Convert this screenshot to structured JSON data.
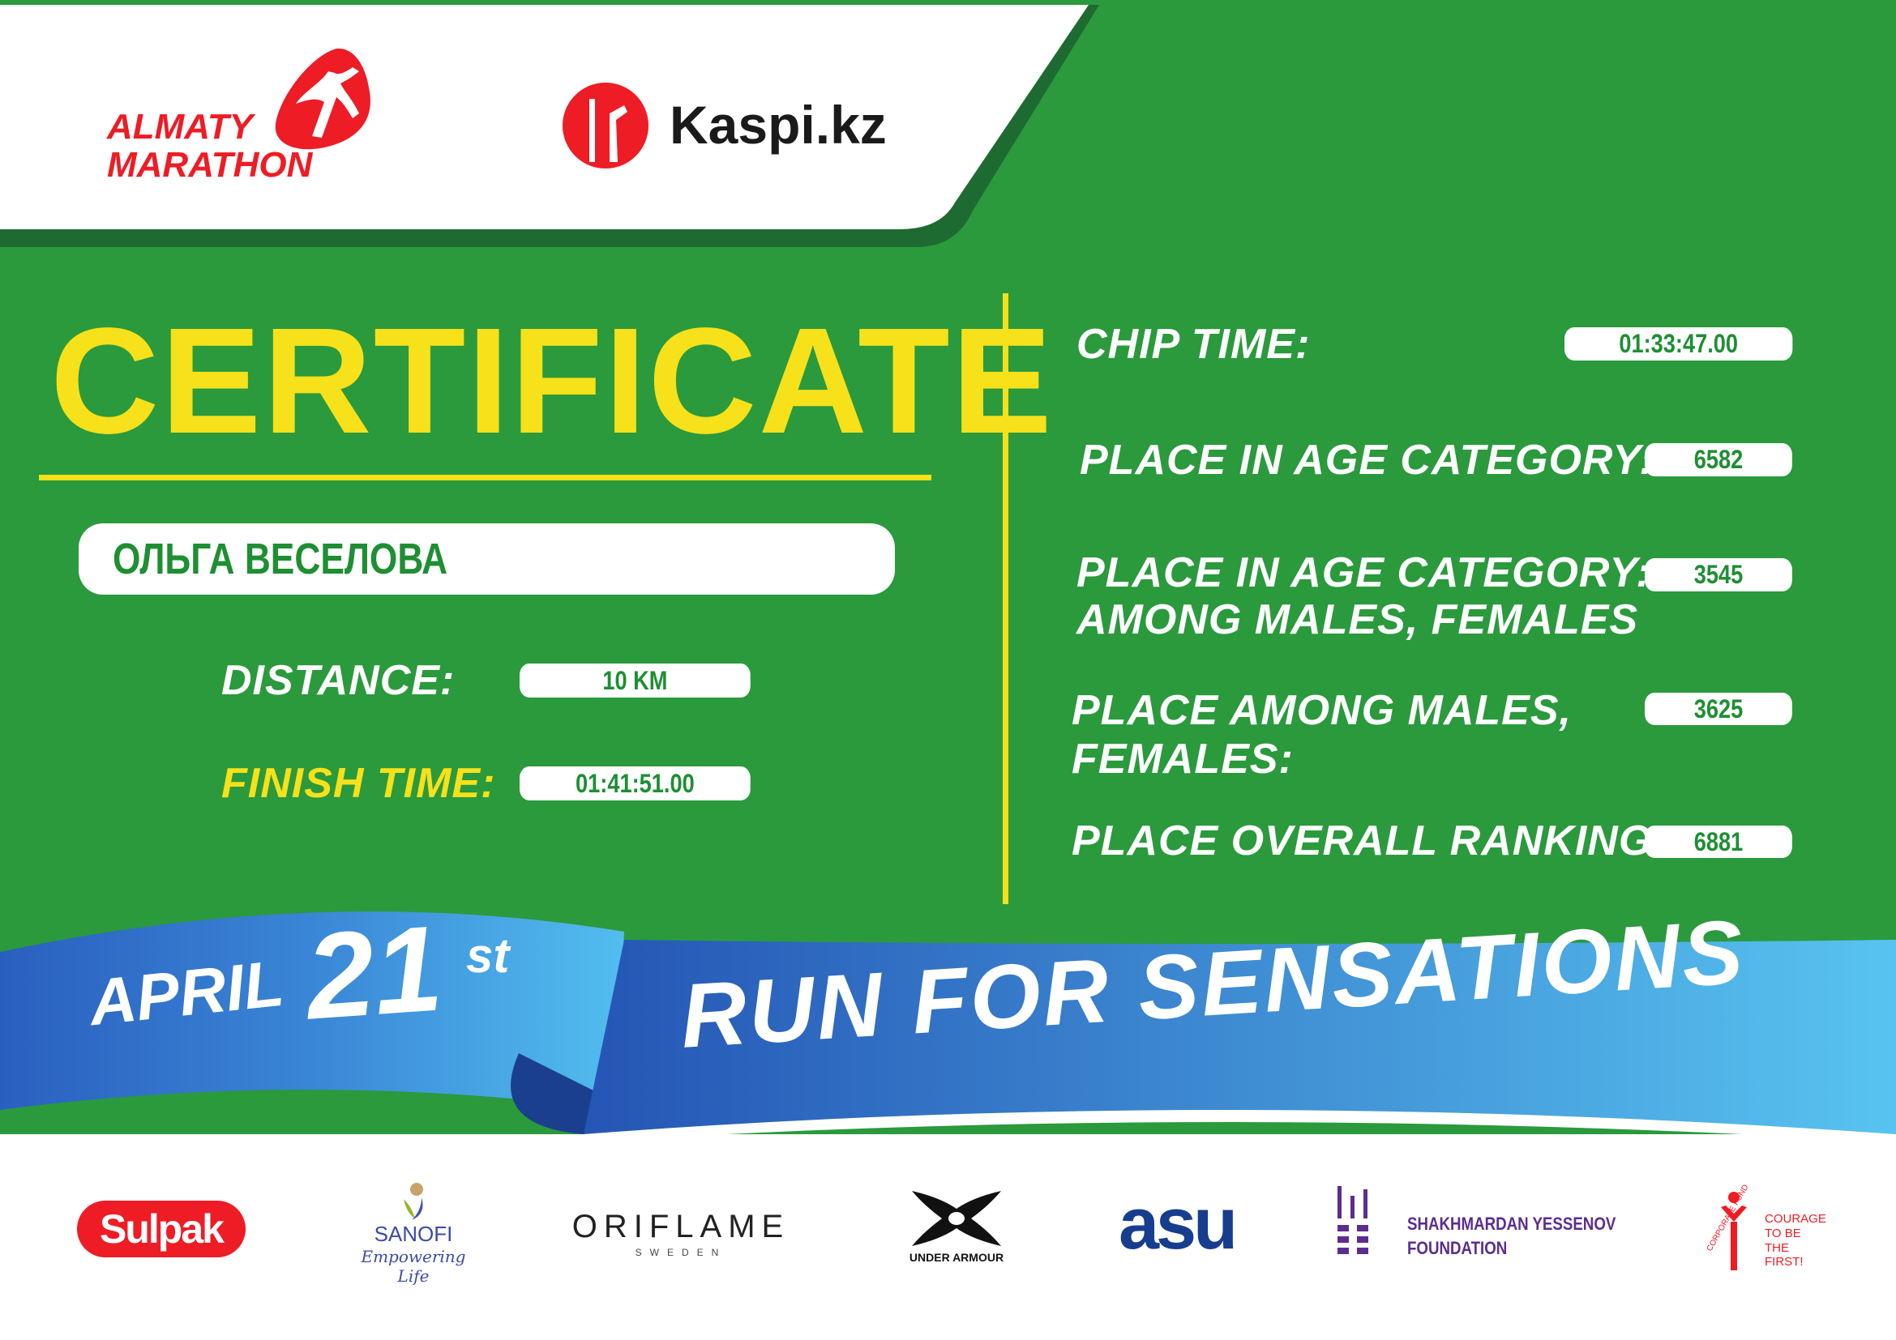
{
  "header": {
    "brand": "ALMATY MARATHON",
    "brand_line1": "ALMATY",
    "brand_line2": "MARATHON",
    "partner": "Kaspi.kz"
  },
  "certificate": {
    "title": "CERTIFICATE",
    "name": "ОЛЬГА ВЕСЕЛОВА"
  },
  "left_fields": [
    {
      "label": "DISTANCE:",
      "value": "10 KM"
    },
    {
      "label": "FINISH TIME:",
      "value": "01:41:51.00"
    }
  ],
  "right_fields": [
    {
      "label": "CHIP TIME:",
      "value": "01:33:47.00"
    },
    {
      "label": "PLACE IN AGE CATEGORY:",
      "value": "6582"
    },
    {
      "label_line1": "PLACE IN AGE CATEGORY:",
      "label_line2": "AMONG MALES, FEMALES",
      "value": "3545"
    },
    {
      "label_line1": "PLACE AMONG MALES,",
      "label_line2": "FEMALES:",
      "value": "3625"
    },
    {
      "label": "PLACE OVERALL RANKING:",
      "value": "6881"
    }
  ],
  "ribbon": {
    "month": "APRIL",
    "day": "21",
    "suffix": "st",
    "slogan": "RUN FOR SENSATIONS"
  },
  "sponsors": {
    "sulpak": "Sulpak",
    "sanofi": "SANOFI",
    "sanofi_tag": "Empowering Life",
    "oriflame": "ORIFLAME",
    "oriflame_sub": "SWEDEN",
    "under_armour": "UNDER ARMOUR",
    "asu": "asu",
    "yessenov_1": "SHAKHMARDAN YESSENOV",
    "yessenov_2": "FOUNDATION",
    "courage_arc": "CORPORATE FUND",
    "courage_1": "COURAGE",
    "courage_2": "TO BE",
    "courage_3": "THE FIRST!"
  },
  "colors": {
    "green": "#2a9a3c",
    "dark_green": "#1e6b31",
    "yellow": "#f7e11a",
    "red": "#ee1c25",
    "blue": "#2f6fc9",
    "light_blue": "#4fb8ea"
  }
}
